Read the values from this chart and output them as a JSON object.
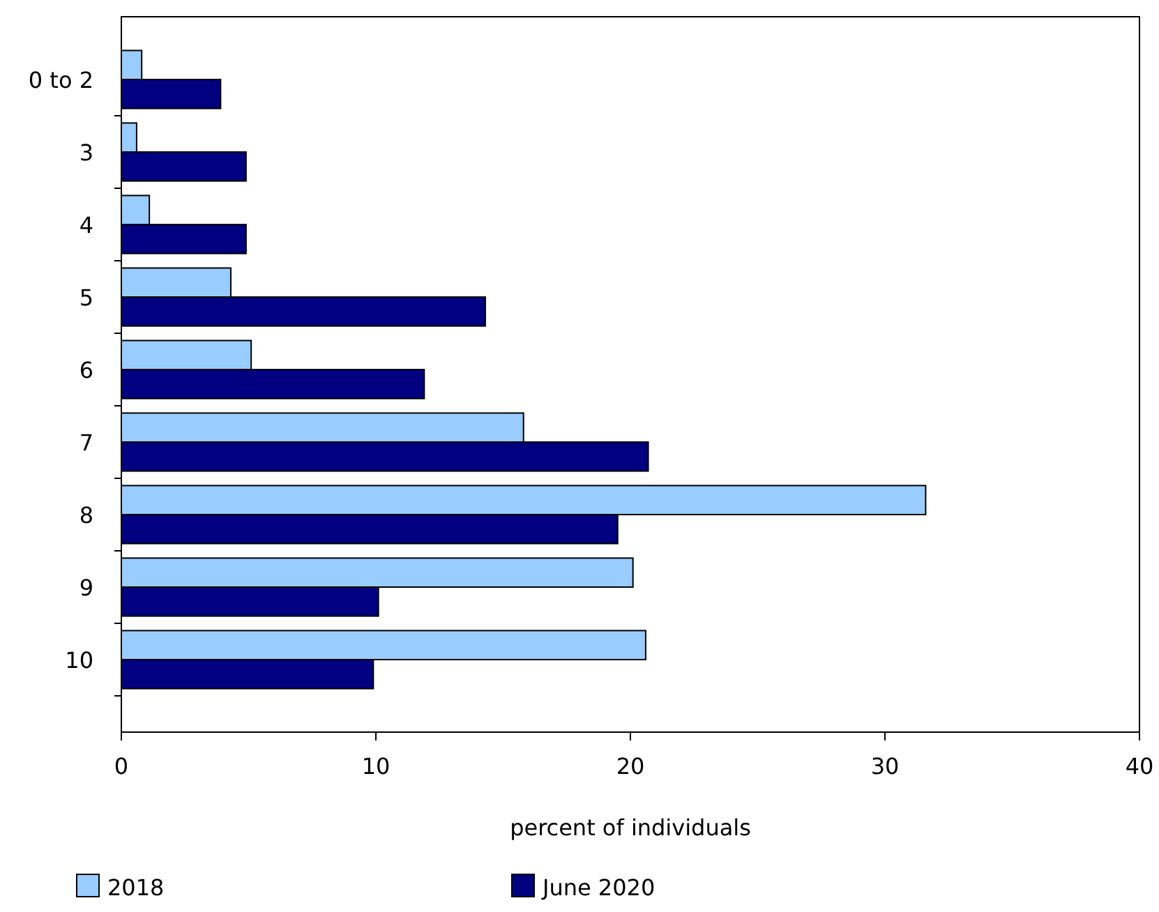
{
  "chart_data": {
    "type": "bar",
    "orientation": "horizontal",
    "categories": [
      "0 to 2",
      "3",
      "4",
      "5",
      "6",
      "7",
      "8",
      "9",
      "10"
    ],
    "series": [
      {
        "name": "2018",
        "color": "#99ccff",
        "values": [
          0.8,
          0.6,
          1.1,
          4.3,
          5.1,
          15.8,
          31.6,
          20.1,
          20.6
        ]
      },
      {
        "name": "June 2020",
        "color": "#000080",
        "values": [
          3.9,
          4.9,
          4.9,
          14.3,
          11.9,
          20.7,
          19.5,
          10.1,
          9.9
        ]
      }
    ],
    "xlabel": "percent of individuals",
    "xlim": [
      0,
      40
    ],
    "xticks": [
      0,
      10,
      20,
      30,
      40
    ],
    "grid": false,
    "legend": "bottom"
  }
}
